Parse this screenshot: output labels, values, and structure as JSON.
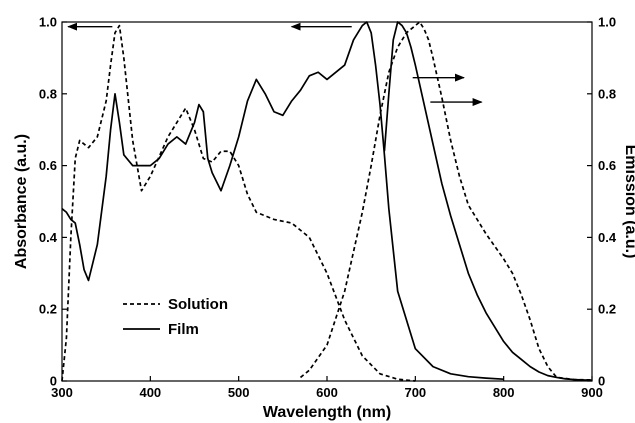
{
  "chart_data": {
    "type": "line",
    "title": "",
    "xlabel": "Wavelength (nm)",
    "ylabel_left": "Absorbance (a.u.)",
    "ylabel_right": "Emission (a.u.)",
    "xlim": [
      300,
      900
    ],
    "ylim_left": [
      0,
      1.0
    ],
    "ylim_right": [
      0,
      1.0
    ],
    "x_ticks": [
      "300",
      "400",
      "500",
      "600",
      "700",
      "800",
      "900"
    ],
    "y_ticks_left": [
      "0",
      "0.2",
      "0.4",
      "0.6",
      "0.8",
      "1.0"
    ],
    "y_ticks_right": [
      "0",
      "0.2",
      "0.4",
      "0.6",
      "0.8",
      "1.0"
    ],
    "grid": false,
    "legend": {
      "position": "lower-left",
      "entries": [
        {
          "label": "Solution",
          "style": "dashed"
        },
        {
          "label": "Film",
          "style": "solid"
        }
      ]
    },
    "series": [
      {
        "name": "Solution",
        "kind": "absorbance",
        "axis": "left",
        "style": "dashed",
        "x": [
          300,
          305,
          310,
          315,
          320,
          330,
          340,
          350,
          355,
          360,
          365,
          370,
          380,
          390,
          400,
          420,
          440,
          450,
          460,
          470,
          480,
          490,
          500,
          510,
          520,
          540,
          560,
          580,
          600,
          620,
          640,
          660,
          680,
          700
        ],
        "y": [
          0.0,
          0.12,
          0.4,
          0.62,
          0.67,
          0.65,
          0.68,
          0.78,
          0.88,
          0.97,
          0.99,
          0.9,
          0.67,
          0.53,
          0.57,
          0.68,
          0.76,
          0.7,
          0.62,
          0.61,
          0.64,
          0.64,
          0.6,
          0.52,
          0.47,
          0.45,
          0.44,
          0.4,
          0.3,
          0.17,
          0.07,
          0.02,
          0.005,
          0.0
        ]
      },
      {
        "name": "Film",
        "kind": "absorbance",
        "axis": "left",
        "style": "solid",
        "x": [
          300,
          305,
          310,
          315,
          320,
          325,
          330,
          335,
          340,
          350,
          355,
          360,
          365,
          370,
          380,
          390,
          400,
          410,
          420,
          430,
          440,
          450,
          455,
          460,
          465,
          470,
          480,
          490,
          500,
          510,
          520,
          530,
          540,
          550,
          560,
          570,
          580,
          590,
          600,
          620,
          630,
          640,
          645,
          650,
          655,
          660,
          665,
          670,
          680,
          700,
          720,
          740,
          760,
          780,
          800
        ],
        "y": [
          0.48,
          0.47,
          0.45,
          0.44,
          0.38,
          0.31,
          0.28,
          0.33,
          0.38,
          0.57,
          0.7,
          0.8,
          0.72,
          0.63,
          0.6,
          0.6,
          0.6,
          0.62,
          0.66,
          0.68,
          0.66,
          0.72,
          0.77,
          0.75,
          0.62,
          0.58,
          0.53,
          0.6,
          0.68,
          0.78,
          0.84,
          0.8,
          0.75,
          0.74,
          0.78,
          0.81,
          0.85,
          0.86,
          0.84,
          0.88,
          0.95,
          0.99,
          1.0,
          0.97,
          0.88,
          0.77,
          0.63,
          0.48,
          0.25,
          0.09,
          0.04,
          0.02,
          0.012,
          0.008,
          0.005
        ]
      },
      {
        "name": "Solution",
        "kind": "emission",
        "axis": "right",
        "style": "dashed",
        "x": [
          570,
          580,
          600,
          620,
          640,
          650,
          660,
          670,
          680,
          690,
          700,
          705,
          710,
          715,
          720,
          730,
          740,
          750,
          760,
          780,
          800,
          810,
          820,
          830,
          840,
          850,
          860,
          880,
          900
        ],
        "y": [
          0.01,
          0.03,
          0.1,
          0.25,
          0.47,
          0.6,
          0.74,
          0.86,
          0.93,
          0.97,
          0.99,
          1.0,
          0.98,
          0.95,
          0.9,
          0.79,
          0.67,
          0.57,
          0.49,
          0.41,
          0.34,
          0.3,
          0.24,
          0.17,
          0.09,
          0.04,
          0.01,
          0.004,
          0.003
        ]
      },
      {
        "name": "Film",
        "kind": "emission",
        "axis": "right",
        "style": "solid",
        "x": [
          665,
          670,
          675,
          680,
          685,
          690,
          695,
          700,
          710,
          720,
          730,
          740,
          750,
          760,
          770,
          780,
          790,
          800,
          810,
          820,
          830,
          840,
          850,
          860,
          870,
          880,
          890,
          900
        ],
        "y": [
          0.64,
          0.8,
          0.95,
          1.0,
          0.99,
          0.97,
          0.93,
          0.88,
          0.77,
          0.66,
          0.55,
          0.46,
          0.38,
          0.3,
          0.24,
          0.19,
          0.15,
          0.11,
          0.08,
          0.06,
          0.04,
          0.025,
          0.015,
          0.01,
          0.006,
          0.004,
          0.003,
          0.002
        ]
      }
    ],
    "annotations": [
      {
        "type": "arrow",
        "direction": "left",
        "target_axis": "left",
        "from": [
          357,
          0.987
        ],
        "to": [
          307,
          0.987
        ]
      },
      {
        "type": "arrow",
        "direction": "left",
        "target_axis": "left",
        "from": [
          628,
          0.987
        ],
        "to": [
          560,
          0.987
        ]
      },
      {
        "type": "arrow",
        "direction": "right",
        "target_axis": "right",
        "from": [
          697,
          0.845
        ],
        "to": [
          755,
          0.845
        ]
      },
      {
        "type": "arrow",
        "direction": "right",
        "target_axis": "right",
        "from": [
          717,
          0.777
        ],
        "to": [
          775,
          0.777
        ]
      }
    ],
    "colors": {
      "line": "#000000",
      "background": "#ffffff"
    }
  }
}
